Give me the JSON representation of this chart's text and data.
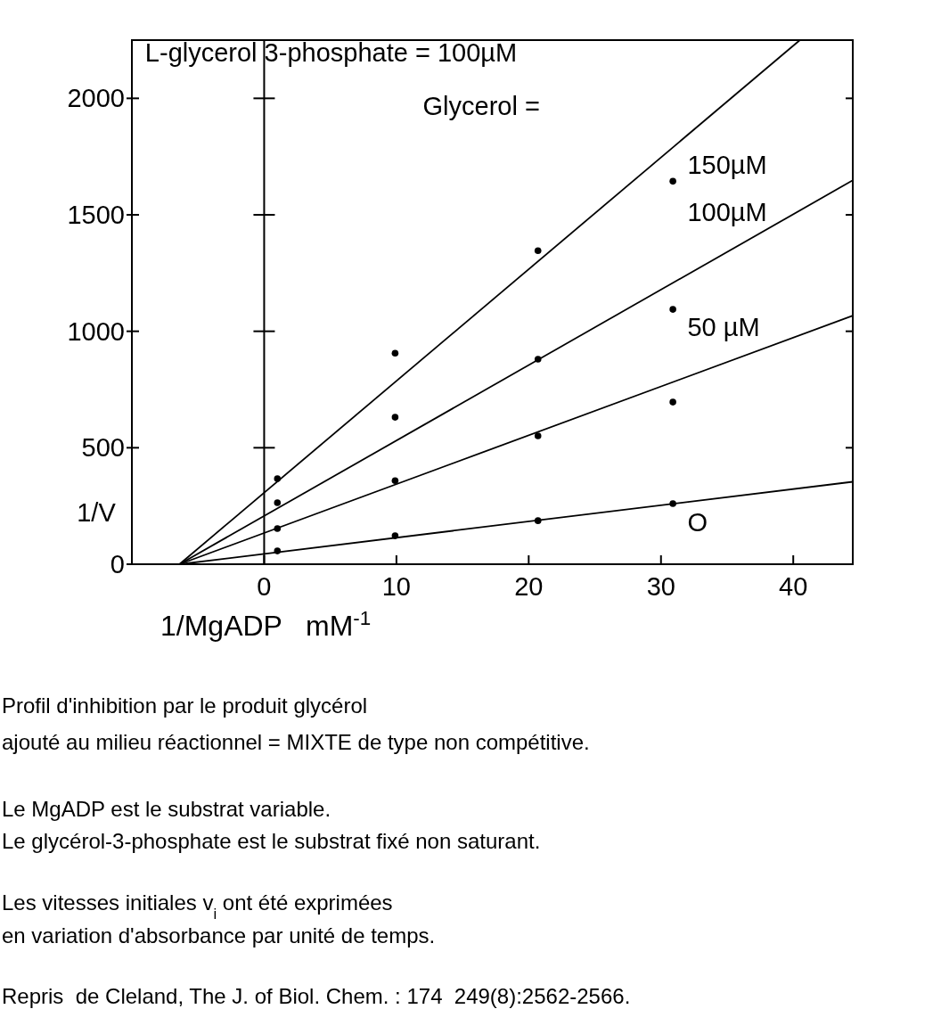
{
  "chart_data": {
    "type": "scatter",
    "xlabel": "1/MgADP   mM$^{-1}$",
    "ylabel": "1/V",
    "xlim": [
      -10,
      44.5
    ],
    "ylim": [
      0,
      2250
    ],
    "xticks": [
      0,
      10,
      20,
      30,
      40
    ],
    "yticks": [
      0,
      500,
      1000,
      1500,
      2000
    ],
    "grid": false,
    "marker": "circle",
    "ref_lines": [
      {
        "axis": "x",
        "value": 0
      }
    ],
    "series": [
      {
        "color": "#000000",
        "x": [
          1,
          9.9,
          20.7,
          30.9
        ],
        "values": [
          367,
          906,
          1346,
          1644
        ]
      },
      {
        "color": "#000000",
        "x": [
          1,
          9.9,
          20.7,
          30.9
        ],
        "values": [
          264,
          631,
          880,
          1094
        ]
      },
      {
        "color": "#000000",
        "x": [
          1,
          9.9,
          20.7,
          30.9
        ],
        "values": [
          153,
          359,
          551,
          696
        ]
      },
      {
        "color": "#000000",
        "x": [
          1,
          9.9,
          20.7,
          30.9
        ],
        "values": [
          57,
          122,
          187,
          260
        ]
      },
      {
        "type": "line",
        "name": "150µM",
        "color": "#000000",
        "marker": "none",
        "line_style": "solid",
        "x": [
          -6.4,
          40.5
        ],
        "values": [
          0,
          2250
        ]
      },
      {
        "type": "line",
        "name": "100µM",
        "color": "#000000",
        "marker": "none",
        "line_style": "solid",
        "x": [
          -6.4,
          44.5
        ],
        "values": [
          0,
          1648
        ]
      },
      {
        "type": "line",
        "name": "50 µM",
        "color": "#000000",
        "marker": "none",
        "line_style": "solid",
        "x": [
          -6.4,
          44.5
        ],
        "values": [
          0,
          1067
        ]
      },
      {
        "type": "line",
        "name": "O",
        "color": "#000000",
        "marker": "none",
        "line_style": "solid",
        "x": [
          -6.4,
          44.5
        ],
        "values": [
          0,
          354
        ]
      }
    ],
    "annotations": [
      "L-glycerol 3-phosphate = 100µM",
      "Glycerol =",
      "Profil d'inhibition par le produit glycérol",
      "ajouté au milieu réactionnel = MIXTE de type non compétitive.",
      "Le MgADP est le substrat variable.",
      "Le glycérol-3-phosphate est le substrat fixé non saturant.",
      "Les vitesses initiales v$_{i}$ ont été exprimées",
      "en variation d'absorbance par unité de temps.",
      "Repris  de Cleland, The J. of Biol. Chem. : 174  249(8):2562-2566."
    ]
  }
}
